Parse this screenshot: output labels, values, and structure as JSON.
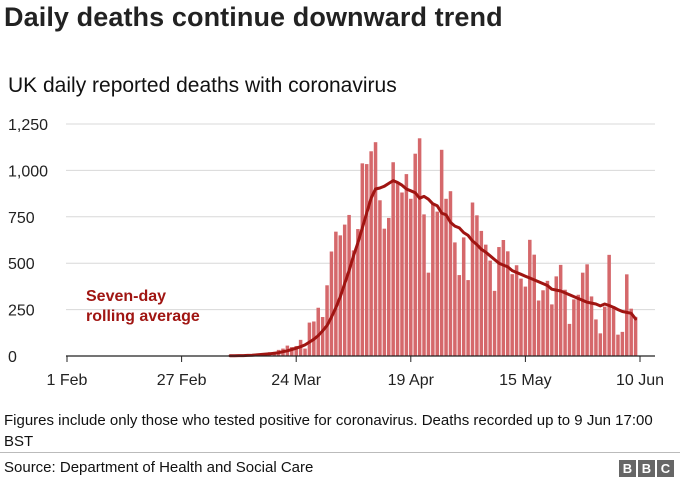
{
  "header": {
    "title": "Daily deaths continue downward trend",
    "subtitle": "UK daily reported deaths with coronavirus"
  },
  "footer": {
    "note": "Figures include only those who tested positive for coronavirus. Deaths recorded up to 9 Jun 17:00 BST",
    "source": "Source: Department of Health and Social Care",
    "logo": [
      "B",
      "B",
      "C"
    ]
  },
  "colors": {
    "bar": "#d5686b",
    "line": "#a01512",
    "annotation": "#a01512",
    "grid": "#d8d8d8",
    "axis": "#222222"
  },
  "chart_data": {
    "type": "bar",
    "title": "UK daily reported deaths with coronavirus",
    "xlabel": "",
    "ylabel": "",
    "ylim": [
      0,
      1250
    ],
    "yticks": [
      0,
      250,
      500,
      750,
      1000,
      1250
    ],
    "ytick_labels": [
      "0",
      "250",
      "500",
      "750",
      "1,000",
      "1,250"
    ],
    "xticks": [
      {
        "day": 0,
        "label": "1 Feb"
      },
      {
        "day": 26,
        "label": "27 Feb"
      },
      {
        "day": 52,
        "label": "24 Mar"
      },
      {
        "day": 78,
        "label": "19 Apr"
      },
      {
        "day": 104,
        "label": "15 May"
      },
      {
        "day": 130,
        "label": "10 Jun"
      }
    ],
    "x_start": "1 Feb",
    "bar_start_day": 37,
    "bar_end_day": 129,
    "series": [
      {
        "name": "Daily reported deaths",
        "values": [
          1,
          2,
          1,
          3,
          4,
          6,
          8,
          10,
          14,
          20,
          16,
          33,
          40,
          56,
          48,
          54,
          87,
          40,
          180,
          186,
          260,
          210,
          381,
          563,
          670,
          650,
          708,
          760,
          569,
          684,
          1038,
          1034,
          1103,
          1152,
          839,
          686,
          744,
          1044,
          938,
          881,
          980,
          847,
          1090,
          1173,
          763,
          449,
          823,
          778,
          1111,
          847,
          888,
          612,
          436,
          639,
          409,
          827,
          758,
          674,
          600,
          514,
          351,
          587,
          625,
          564,
          441,
          489,
          417,
          374,
          626,
          546,
          299,
          354,
          405,
          278,
          429,
          491,
          357,
          173,
          305,
          330,
          449,
          494,
          321,
          197,
          122,
          266,
          545,
          268,
          115,
          130,
          440,
          255,
          211
        ]
      },
      {
        "name": "Seven-day rolling average",
        "values": [
          1,
          1,
          2,
          2,
          3,
          4,
          6,
          8,
          10,
          12,
          15,
          18,
          23,
          28,
          35,
          42,
          50,
          60,
          75,
          90,
          110,
          135,
          165,
          210,
          260,
          320,
          390,
          460,
          540,
          610,
          690,
          770,
          850,
          900,
          905,
          915,
          930,
          945,
          935,
          920,
          900,
          890,
          880,
          850,
          860,
          845,
          820,
          810,
          770,
          760,
          720,
          700,
          690,
          665,
          650,
          620,
          600,
          575,
          560,
          540,
          520,
          500,
          490,
          480,
          460,
          450,
          440,
          430,
          420,
          410,
          400,
          390,
          380,
          360,
          355,
          350,
          340,
          330,
          320,
          310,
          300,
          290,
          285,
          280,
          270,
          280,
          272,
          262,
          250,
          240,
          235,
          230,
          200
        ]
      }
    ],
    "annotations": [
      {
        "text": "Seven-day rolling average",
        "lines": [
          "Seven-day",
          "rolling average"
        ],
        "series": "Seven-day rolling average",
        "anchor_day": 45,
        "anchor_value": 250
      }
    ]
  }
}
